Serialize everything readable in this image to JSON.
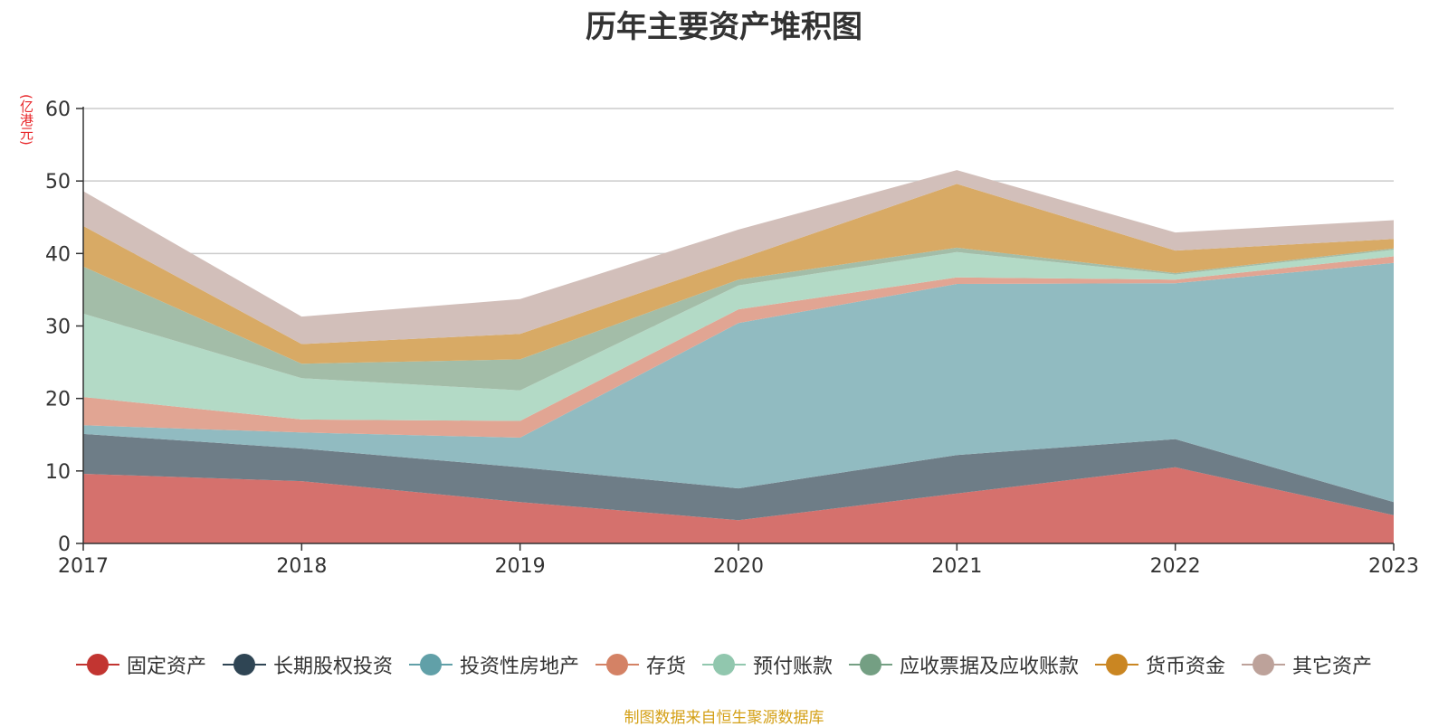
{
  "chart_data": {
    "type": "area",
    "stacked": true,
    "title": "历年主要资产堆积图",
    "unit_label": "(亿港元)",
    "x": [
      "2017",
      "2018",
      "2019",
      "2020",
      "2021",
      "2022",
      "2023"
    ],
    "ylim": [
      0,
      60
    ],
    "yticks": [
      "0",
      "10",
      "20",
      "30",
      "40",
      "50",
      "60"
    ],
    "grid": true,
    "legend_position": "bottom",
    "series": [
      {
        "name": "固定资产",
        "color": "#c23531",
        "legend_color": "#c23531",
        "fill": "#d5716d",
        "values": [
          9.6,
          8.6,
          5.7,
          3.2,
          6.9,
          10.5,
          3.9
        ]
      },
      {
        "name": "长期股权投资",
        "color": "#2f4554",
        "legend_color": "#2f4554",
        "fill": "#6e7d87",
        "values": [
          5.5,
          4.5,
          4.8,
          4.4,
          5.3,
          3.9,
          1.8
        ]
      },
      {
        "name": "投资性房地产",
        "color": "#61a0a8",
        "legend_color": "#61a0a8",
        "fill": "#91bbc1",
        "values": [
          1.2,
          2.2,
          4.1,
          22.8,
          23.6,
          21.5,
          33.0
        ]
      },
      {
        "name": "存货",
        "color": "#d48265",
        "legend_color": "#d48265",
        "fill": "#e1a593",
        "values": [
          3.9,
          1.8,
          2.3,
          1.9,
          0.9,
          0.5,
          0.9
        ]
      },
      {
        "name": "预付账款",
        "color": "#91c7ae",
        "legend_color": "#91c7ae",
        "fill": "#b3dac6",
        "values": [
          11.5,
          5.7,
          4.2,
          3.3,
          3.5,
          0.7,
          0.9
        ]
      },
      {
        "name": "应收票据及应收账款",
        "color": "#749f83",
        "legend_color": "#749f83",
        "fill": "#a3bda8",
        "values": [
          6.5,
          2.0,
          4.3,
          0.8,
          0.6,
          0.2,
          0.2
        ]
      },
      {
        "name": "货币资金",
        "color": "#ca8622",
        "legend_color": "#ca8622",
        "fill": "#d8aa65",
        "values": [
          5.6,
          2.7,
          3.5,
          2.8,
          8.8,
          3.1,
          1.3
        ]
      },
      {
        "name": "其它资产",
        "color": "#bda29a",
        "legend_color": "#bda29a",
        "fill": "#d2bfba",
        "values": [
          4.8,
          3.8,
          4.8,
          4.1,
          1.9,
          2.5,
          2.6
        ]
      }
    ]
  },
  "source_note": "制图数据来自恒生聚源数据库"
}
